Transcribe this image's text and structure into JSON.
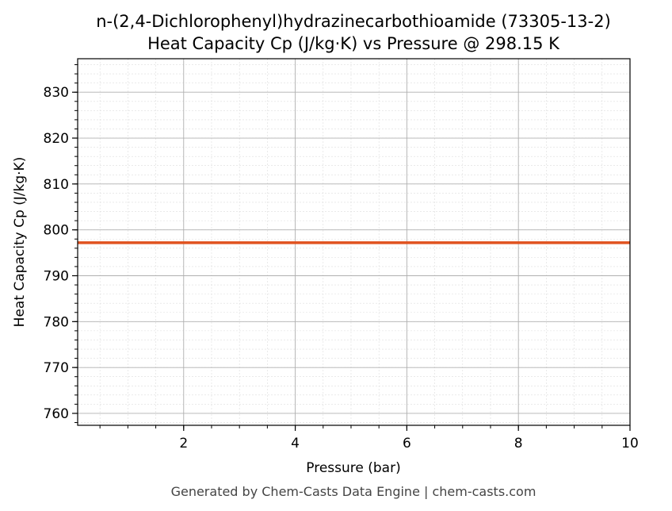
{
  "chart_data": {
    "type": "line",
    "title": "n-(2,4-Dichlorophenyl)hydrazinecarbothioamide (73305-13-2)",
    "subtitle": "Heat Capacity Cp (J/kg·K) vs Pressure @ 298.15 K",
    "xlabel": "Pressure (bar)",
    "ylabel": "Heat Capacity Cp (J/kg·K)",
    "xlim": [
      0.1,
      10
    ],
    "ylim": [
      757.4,
      837.3
    ],
    "xticks": [
      2,
      4,
      6,
      8,
      10
    ],
    "yticks": [
      760,
      770,
      780,
      790,
      800,
      810,
      820,
      830
    ],
    "x_minor_step": 0.5,
    "y_minor_step": 2,
    "grid": true,
    "series": [
      {
        "x": [
          0.1,
          10
        ],
        "y": [
          797.2,
          797.2
        ],
        "color": "#e0521f"
      }
    ],
    "footer": "Generated by Chem-Casts Data Engine | chem-casts.com"
  }
}
